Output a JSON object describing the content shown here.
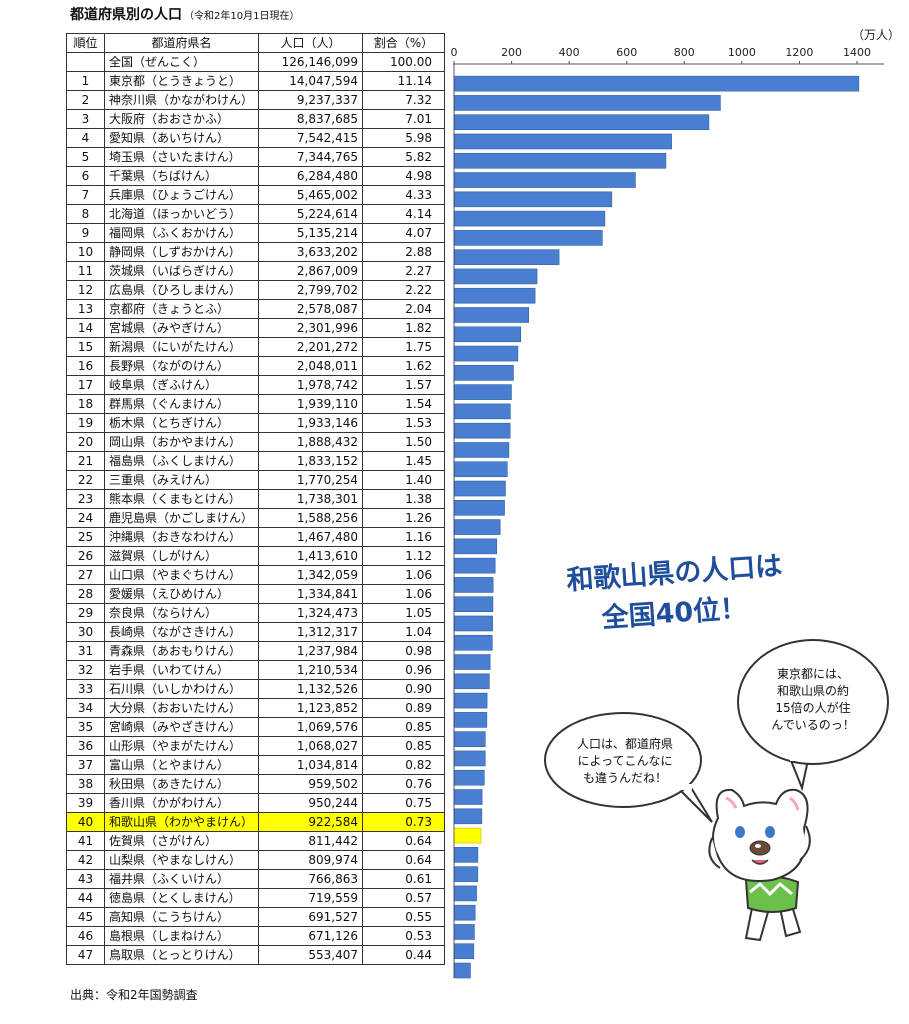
{
  "title": {
    "main": "都道府県別の人口",
    "note": "（令和2年10月1日現在）"
  },
  "table": {
    "headers": {
      "rank": "順位",
      "name": "都道府県名",
      "population": "人口（人）",
      "share": "割合（%）"
    },
    "total": {
      "name": "全国（ぜんこく）",
      "population": "126,146,099",
      "share": "100.00"
    }
  },
  "highlight_rank": "40",
  "colors": {
    "bar": "#4a7ed0",
    "bar_edge": "#2f5fa8",
    "highlight_bar": "#ffff00",
    "highlight_row": "#ffff00",
    "headline": "#1f4e9c",
    "axis": "#555555"
  },
  "chart_data": {
    "type": "bar",
    "orientation": "horizontal",
    "unit_label": "（万人）",
    "xlim": [
      0,
      1400
    ],
    "xticks": [
      0,
      200,
      400,
      600,
      800,
      1000,
      1200,
      1400
    ],
    "rows": [
      {
        "rank": "1",
        "name": "東京都（とうきょうと）",
        "pop": "14,047,594",
        "share": "11.14",
        "value": 1404.7594
      },
      {
        "rank": "2",
        "name": "神奈川県（かながわけん）",
        "pop": "9,237,337",
        "share": "7.32",
        "value": 923.7337
      },
      {
        "rank": "3",
        "name": "大阪府（おおさかふ）",
        "pop": "8,837,685",
        "share": "7.01",
        "value": 883.7685
      },
      {
        "rank": "4",
        "name": "愛知県（あいちけん）",
        "pop": "7,542,415",
        "share": "5.98",
        "value": 754.2415
      },
      {
        "rank": "5",
        "name": "埼玉県（さいたまけん）",
        "pop": "7,344,765",
        "share": "5.82",
        "value": 734.4765
      },
      {
        "rank": "6",
        "name": "千葉県（ちばけん）",
        "pop": "6,284,480",
        "share": "4.98",
        "value": 628.448
      },
      {
        "rank": "7",
        "name": "兵庫県（ひょうごけん）",
        "pop": "5,465,002",
        "share": "4.33",
        "value": 546.5002
      },
      {
        "rank": "8",
        "name": "北海道（ほっかいどう）",
        "pop": "5,224,614",
        "share": "4.14",
        "value": 522.4614
      },
      {
        "rank": "9",
        "name": "福岡県（ふくおかけん）",
        "pop": "5,135,214",
        "share": "4.07",
        "value": 513.5214
      },
      {
        "rank": "10",
        "name": "静岡県（しずおかけん）",
        "pop": "3,633,202",
        "share": "2.88",
        "value": 363.3202
      },
      {
        "rank": "11",
        "name": "茨城県（いばらぎけん）",
        "pop": "2,867,009",
        "share": "2.27",
        "value": 286.7009
      },
      {
        "rank": "12",
        "name": "広島県（ひろしまけん）",
        "pop": "2,799,702",
        "share": "2.22",
        "value": 279.9702
      },
      {
        "rank": "13",
        "name": "京都府（きょうとふ）",
        "pop": "2,578,087",
        "share": "2.04",
        "value": 257.8087
      },
      {
        "rank": "14",
        "name": "宮城県（みやぎけん）",
        "pop": "2,301,996",
        "share": "1.82",
        "value": 230.1996
      },
      {
        "rank": "15",
        "name": "新潟県（にいがたけん）",
        "pop": "2,201,272",
        "share": "1.75",
        "value": 220.1272
      },
      {
        "rank": "16",
        "name": "長野県（ながのけん）",
        "pop": "2,048,011",
        "share": "1.62",
        "value": 204.8011
      },
      {
        "rank": "17",
        "name": "岐阜県（ぎふけん）",
        "pop": "1,978,742",
        "share": "1.57",
        "value": 197.8742
      },
      {
        "rank": "18",
        "name": "群馬県（ぐんまけん）",
        "pop": "1,939,110",
        "share": "1.54",
        "value": 193.911
      },
      {
        "rank": "19",
        "name": "栃木県（とちぎけん）",
        "pop": "1,933,146",
        "share": "1.53",
        "value": 193.3146
      },
      {
        "rank": "20",
        "name": "岡山県（おかやまけん）",
        "pop": "1,888,432",
        "share": "1.50",
        "value": 188.8432
      },
      {
        "rank": "21",
        "name": "福島県（ふくしまけん）",
        "pop": "1,833,152",
        "share": "1.45",
        "value": 183.3152
      },
      {
        "rank": "22",
        "name": "三重県（みえけん）",
        "pop": "1,770,254",
        "share": "1.40",
        "value": 177.0254
      },
      {
        "rank": "23",
        "name": "熊本県（くまもとけん）",
        "pop": "1,738,301",
        "share": "1.38",
        "value": 173.8301
      },
      {
        "rank": "24",
        "name": "鹿児島県（かごしまけん）",
        "pop": "1,588,256",
        "share": "1.26",
        "value": 158.8256
      },
      {
        "rank": "25",
        "name": "沖縄県（おきなわけん）",
        "pop": "1,467,480",
        "share": "1.16",
        "value": 146.748
      },
      {
        "rank": "26",
        "name": "滋賀県（しがけん）",
        "pop": "1,413,610",
        "share": "1.12",
        "value": 141.361
      },
      {
        "rank": "27",
        "name": "山口県（やまぐちけん）",
        "pop": "1,342,059",
        "share": "1.06",
        "value": 134.2059
      },
      {
        "rank": "28",
        "name": "愛媛県（えひめけん）",
        "pop": "1,334,841",
        "share": "1.06",
        "value": 133.4841
      },
      {
        "rank": "29",
        "name": "奈良県（ならけん）",
        "pop": "1,324,473",
        "share": "1.05",
        "value": 132.4473
      },
      {
        "rank": "30",
        "name": "長崎県（ながさきけん）",
        "pop": "1,312,317",
        "share": "1.04",
        "value": 131.2317
      },
      {
        "rank": "31",
        "name": "青森県（あおもりけん）",
        "pop": "1,237,984",
        "share": "0.98",
        "value": 123.7984
      },
      {
        "rank": "32",
        "name": "岩手県（いわてけん）",
        "pop": "1,210,534",
        "share": "0.96",
        "value": 121.0534
      },
      {
        "rank": "33",
        "name": "石川県（いしかわけん）",
        "pop": "1,132,526",
        "share": "0.90",
        "value": 113.2526
      },
      {
        "rank": "34",
        "name": "大分県（おおいたけん）",
        "pop": "1,123,852",
        "share": "0.89",
        "value": 112.3852
      },
      {
        "rank": "35",
        "name": "宮崎県（みやざきけん）",
        "pop": "1,069,576",
        "share": "0.85",
        "value": 106.9576
      },
      {
        "rank": "36",
        "name": "山形県（やまがたけん）",
        "pop": "1,068,027",
        "share": "0.85",
        "value": 106.8027
      },
      {
        "rank": "37",
        "name": "富山県（とやまけん）",
        "pop": "1,034,814",
        "share": "0.82",
        "value": 103.4814
      },
      {
        "rank": "38",
        "name": "秋田県（あきたけん）",
        "pop": "959,502",
        "share": "0.76",
        "value": 95.9502
      },
      {
        "rank": "39",
        "name": "香川県（かがわけん）",
        "pop": "950,244",
        "share": "0.75",
        "value": 95.0244
      },
      {
        "rank": "40",
        "name": "和歌山県（わかやまけん）",
        "pop": "922,584",
        "share": "0.73",
        "value": 92.2584
      },
      {
        "rank": "41",
        "name": "佐賀県（さがけん）",
        "pop": "811,442",
        "share": "0.64",
        "value": 81.1442
      },
      {
        "rank": "42",
        "name": "山梨県（やまなしけん）",
        "pop": "809,974",
        "share": "0.64",
        "value": 80.9974
      },
      {
        "rank": "43",
        "name": "福井県（ふくいけん）",
        "pop": "766,863",
        "share": "0.61",
        "value": 76.6863
      },
      {
        "rank": "44",
        "name": "徳島県（とくしまけん）",
        "pop": "719,559",
        "share": "0.57",
        "value": 71.9559
      },
      {
        "rank": "45",
        "name": "高知県（こうちけん）",
        "pop": "691,527",
        "share": "0.55",
        "value": 69.1527
      },
      {
        "rank": "46",
        "name": "島根県（しまねけん）",
        "pop": "671,126",
        "share": "0.53",
        "value": 67.1126
      },
      {
        "rank": "47",
        "name": "鳥取県（とっとりけん）",
        "pop": "553,407",
        "share": "0.44",
        "value": 55.3407
      }
    ]
  },
  "headline": {
    "line1": "和歌山県の人口は",
    "line2": "全国40位！"
  },
  "bubbles": {
    "right": [
      "東京都には、",
      "和歌山県の約",
      "15倍の人が住",
      "んでいるのっ！"
    ],
    "left": [
      "人口は、都道府県",
      "によってこんなに",
      "も違うんだね！"
    ]
  },
  "source": "出典：令和2年国勢調査"
}
